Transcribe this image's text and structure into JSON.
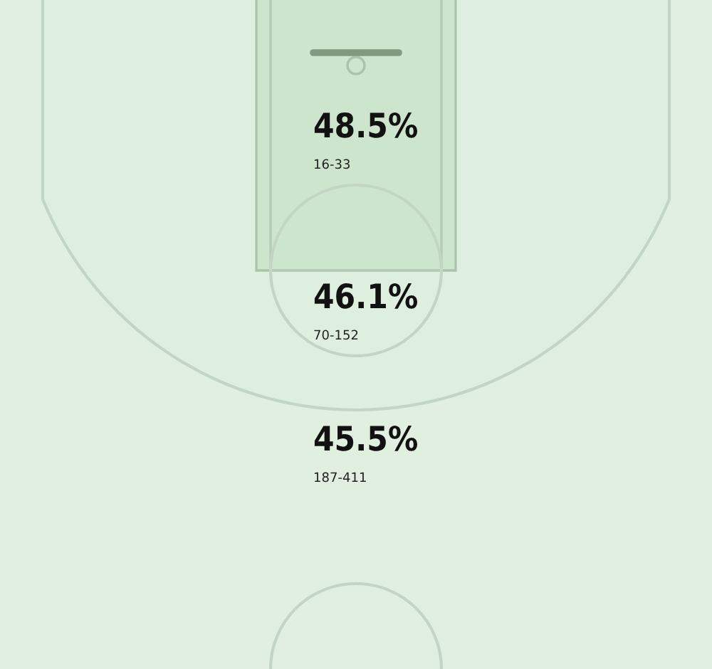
{
  "chart_data": {
    "type": "other",
    "categories": [
      null,
      null,
      null
    ],
    "values": [
      48.5,
      46.1,
      45.5
    ],
    "value_labels": [
      "48.5%",
      "46.1%",
      "45.5%"
    ],
    "annotations": [
      "16-33",
      "70-152",
      "187-411"
    ]
  }
}
